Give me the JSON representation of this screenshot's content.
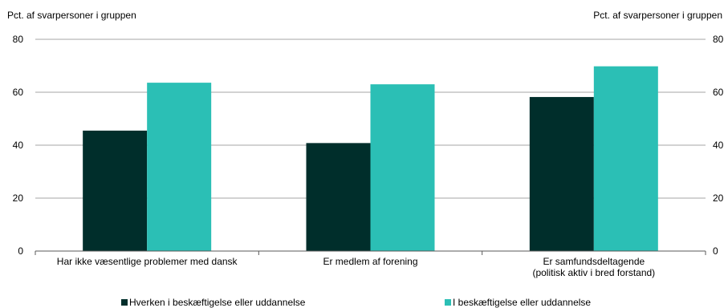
{
  "chart_data": {
    "type": "bar",
    "y_axis_title_left": "Pct. af svarpersoner i gruppen",
    "y_axis_title_right": "Pct. af svarpersoner i gruppen",
    "ylim": [
      0,
      80
    ],
    "yticks": [
      "0",
      "20",
      "40",
      "60",
      "80"
    ],
    "categories": [
      [
        "Har ikke væsentlige problemer med dansk"
      ],
      [
        "Er medlem af forening"
      ],
      [
        "Er samfundsdeltagende",
        "(politisk aktiv i bred forstand)"
      ]
    ],
    "series": [
      {
        "name": "Hverken i beskæftigelse eller uddannelse",
        "color": "#002e2b",
        "values": [
          45.5,
          40.8,
          58.2
        ]
      },
      {
        "name": "I beskæftigelse eller uddannelse",
        "color": "#2bbfb5",
        "values": [
          63.6,
          63.0,
          69.8
        ]
      }
    ],
    "grid": true,
    "legend_position": "bottom"
  }
}
